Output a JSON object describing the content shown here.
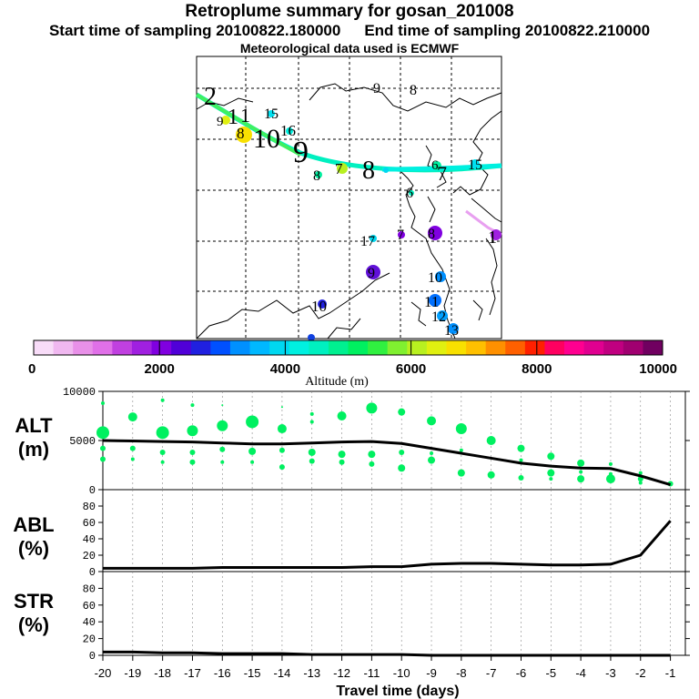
{
  "header": {
    "title": "Retroplume summary for gosan_201008",
    "start_label": "Start time of sampling 20100822.180000",
    "end_label": "End time of sampling 20100822.210000",
    "met_label": "Meteorological data used is ECMWF"
  },
  "map": {
    "labels": [
      {
        "text": "2"
      },
      {
        "text": "9"
      },
      {
        "text": "1"
      },
      {
        "text": "1"
      },
      {
        "text": "8"
      },
      {
        "text": "10"
      },
      {
        "text": "15"
      },
      {
        "text": "16"
      },
      {
        "text": "9"
      },
      {
        "text": "8"
      },
      {
        "text": "7"
      },
      {
        "text": "8"
      },
      {
        "text": "9"
      },
      {
        "text": "8"
      },
      {
        "text": "6"
      },
      {
        "text": "7"
      },
      {
        "text": "15"
      },
      {
        "text": "6"
      },
      {
        "text": "17"
      },
      {
        "text": "7"
      },
      {
        "text": "8"
      },
      {
        "text": "1"
      },
      {
        "text": "9"
      },
      {
        "text": "10"
      },
      {
        "text": "10"
      },
      {
        "text": "11"
      },
      {
        "text": "12"
      },
      {
        "text": "13"
      }
    ]
  },
  "colorbar": {
    "ticks": [
      "0",
      "2000",
      "4000",
      "6000",
      "8000",
      "10000"
    ],
    "label": "Altitude (m)",
    "colors": [
      "#f8dcf8",
      "#f0b8f0",
      "#e890e8",
      "#e070e8",
      "#c040e0",
      "#a020e0",
      "#8000e0",
      "#5000d8",
      "#2020e0",
      "#0050ff",
      "#0090ff",
      "#00b8ff",
      "#00d8f0",
      "#00f0e0",
      "#00f0c0",
      "#00f090",
      "#00f060",
      "#30f040",
      "#80f030",
      "#b8f020",
      "#e0f010",
      "#f8e000",
      "#ffc000",
      "#ff9000",
      "#ff6000",
      "#ff2000",
      "#ff0060",
      "#ff0090",
      "#e00090",
      "#c00080",
      "#a00070",
      "#700060"
    ]
  },
  "axes": {
    "alt_label_1": "ALT",
    "alt_label_2": "(m)",
    "abl_label_1": "ABL",
    "abl_label_2": "(%)",
    "str_label_1": "STR",
    "str_label_2": "(%)",
    "xlabel": "Travel time (days)",
    "alt_ticks": [
      "10000",
      "5000",
      "0"
    ],
    "pct_ticks": [
      "80",
      "60",
      "40",
      "20",
      "0"
    ],
    "x_ticks": [
      "-20",
      "-19",
      "-18",
      "-17",
      "-16",
      "-15",
      "-14",
      "-13",
      "-12",
      "-11",
      "-10",
      "-9",
      "-8",
      "-7",
      "-6",
      "-5",
      "-4",
      "-3",
      "-2",
      "-1"
    ]
  },
  "chart_data": [
    {
      "type": "line",
      "title": "ALT",
      "ylabel": "(m)",
      "ylim": [
        0,
        10000
      ],
      "xlim": [
        -20,
        -0.5
      ],
      "x": [
        -20,
        -19,
        -18,
        -17,
        -16,
        -15,
        -14,
        -13,
        -12,
        -11,
        -10,
        -9,
        -8,
        -7,
        -6,
        -5,
        -4,
        -3,
        -2,
        -1
      ],
      "series": [
        {
          "name": "mean altitude",
          "values": [
            5000,
            4950,
            4900,
            4850,
            4750,
            4650,
            4650,
            4750,
            4850,
            4900,
            4700,
            4200,
            3700,
            3200,
            2700,
            2400,
            2200,
            2150,
            1400,
            500
          ]
        }
      ],
      "scatter_points": [
        {
          "x": -20,
          "y": 8800,
          "size": 2
        },
        {
          "x": -20,
          "y": 5800,
          "size": 7
        },
        {
          "x": -20,
          "y": 4200,
          "size": 3
        },
        {
          "x": -20,
          "y": 3100,
          "size": 3
        },
        {
          "x": -19,
          "y": 7400,
          "size": 5
        },
        {
          "x": -19,
          "y": 4200,
          "size": 3
        },
        {
          "x": -19,
          "y": 3100,
          "size": 2
        },
        {
          "x": -18,
          "y": 9100,
          "size": 2
        },
        {
          "x": -18,
          "y": 5800,
          "size": 7
        },
        {
          "x": -18,
          "y": 3800,
          "size": 3
        },
        {
          "x": -18,
          "y": 2800,
          "size": 2
        },
        {
          "x": -17,
          "y": 8600,
          "size": 2
        },
        {
          "x": -17,
          "y": 6000,
          "size": 6
        },
        {
          "x": -17,
          "y": 3800,
          "size": 3
        },
        {
          "x": -17,
          "y": 2800,
          "size": 3
        },
        {
          "x": -16,
          "y": 8600,
          "size": 1
        },
        {
          "x": -16,
          "y": 6500,
          "size": 6
        },
        {
          "x": -16,
          "y": 4100,
          "size": 3
        },
        {
          "x": -16,
          "y": 2800,
          "size": 2
        },
        {
          "x": -15,
          "y": 6900,
          "size": 7
        },
        {
          "x": -15,
          "y": 3900,
          "size": 4
        },
        {
          "x": -15,
          "y": 2800,
          "size": 2
        },
        {
          "x": -14,
          "y": 8400,
          "size": 1
        },
        {
          "x": -14,
          "y": 6200,
          "size": 5
        },
        {
          "x": -14,
          "y": 4000,
          "size": 3
        },
        {
          "x": -14,
          "y": 2300,
          "size": 3
        },
        {
          "x": -13,
          "y": 7700,
          "size": 2
        },
        {
          "x": -13,
          "y": 6900,
          "size": 2
        },
        {
          "x": -13,
          "y": 3800,
          "size": 4
        },
        {
          "x": -13,
          "y": 2900,
          "size": 3
        },
        {
          "x": -12,
          "y": 7500,
          "size": 5
        },
        {
          "x": -12,
          "y": 3600,
          "size": 4
        },
        {
          "x": -12,
          "y": 2800,
          "size": 3
        },
        {
          "x": -11,
          "y": 8300,
          "size": 6
        },
        {
          "x": -11,
          "y": 3600,
          "size": 4
        },
        {
          "x": -11,
          "y": 2600,
          "size": 3
        },
        {
          "x": -10,
          "y": 7900,
          "size": 4
        },
        {
          "x": -10,
          "y": 3800,
          "size": 3
        },
        {
          "x": -10,
          "y": 2200,
          "size": 4
        },
        {
          "x": -9,
          "y": 7000,
          "size": 5
        },
        {
          "x": -9,
          "y": 3700,
          "size": 2
        },
        {
          "x": -9,
          "y": 3000,
          "size": 4
        },
        {
          "x": -8,
          "y": 6200,
          "size": 6
        },
        {
          "x": -8,
          "y": 4000,
          "size": 2
        },
        {
          "x": -8,
          "y": 1700,
          "size": 4
        },
        {
          "x": -7,
          "y": 5000,
          "size": 5
        },
        {
          "x": -7,
          "y": 1500,
          "size": 4
        },
        {
          "x": -6,
          "y": 4200,
          "size": 4
        },
        {
          "x": -6,
          "y": 3000,
          "size": 2
        },
        {
          "x": -6,
          "y": 1200,
          "size": 3
        },
        {
          "x": -5,
          "y": 3400,
          "size": 4
        },
        {
          "x": -5,
          "y": 1700,
          "size": 4
        },
        {
          "x": -5,
          "y": 1100,
          "size": 2
        },
        {
          "x": -4,
          "y": 2700,
          "size": 4
        },
        {
          "x": -4,
          "y": 1800,
          "size": 2
        },
        {
          "x": -4,
          "y": 1100,
          "size": 4
        },
        {
          "x": -3,
          "y": 2600,
          "size": 2
        },
        {
          "x": -3,
          "y": 1600,
          "size": 2
        },
        {
          "x": -3,
          "y": 1100,
          "size": 5
        },
        {
          "x": -2,
          "y": 1700,
          "size": 2
        },
        {
          "x": -2,
          "y": 1100,
          "size": 3
        },
        {
          "x": -2,
          "y": 700,
          "size": 2
        },
        {
          "x": -1,
          "y": 600,
          "size": 3
        }
      ]
    },
    {
      "type": "line",
      "title": "ABL",
      "ylabel": "(%)",
      "ylim": [
        0,
        100
      ],
      "xlim": [
        -20,
        -0.5
      ],
      "x": [
        -20,
        -19,
        -18,
        -17,
        -16,
        -15,
        -14,
        -13,
        -12,
        -11,
        -10,
        -9,
        -8,
        -7,
        -6,
        -5,
        -4,
        -3,
        -2,
        -1
      ],
      "series": [
        {
          "name": "ABL fraction",
          "values": [
            4,
            4,
            4,
            4,
            5,
            5,
            5,
            5,
            5,
            6,
            6,
            9,
            10,
            10,
            9,
            8,
            8,
            9,
            20,
            62
          ]
        }
      ]
    },
    {
      "type": "line",
      "title": "STR",
      "ylabel": "(%)",
      "ylim": [
        0,
        100
      ],
      "xlim": [
        -20,
        -0.5
      ],
      "x": [
        -20,
        -19,
        -18,
        -17,
        -16,
        -15,
        -14,
        -13,
        -12,
        -11,
        -10,
        -9,
        -8,
        -7,
        -6,
        -5,
        -4,
        -3,
        -2,
        -1
      ],
      "series": [
        {
          "name": "STR fraction",
          "values": [
            4,
            4,
            3,
            3,
            2,
            2,
            2,
            1,
            1,
            1,
            1,
            0,
            0,
            0,
            0,
            0,
            0,
            0,
            0,
            0
          ]
        }
      ]
    }
  ]
}
